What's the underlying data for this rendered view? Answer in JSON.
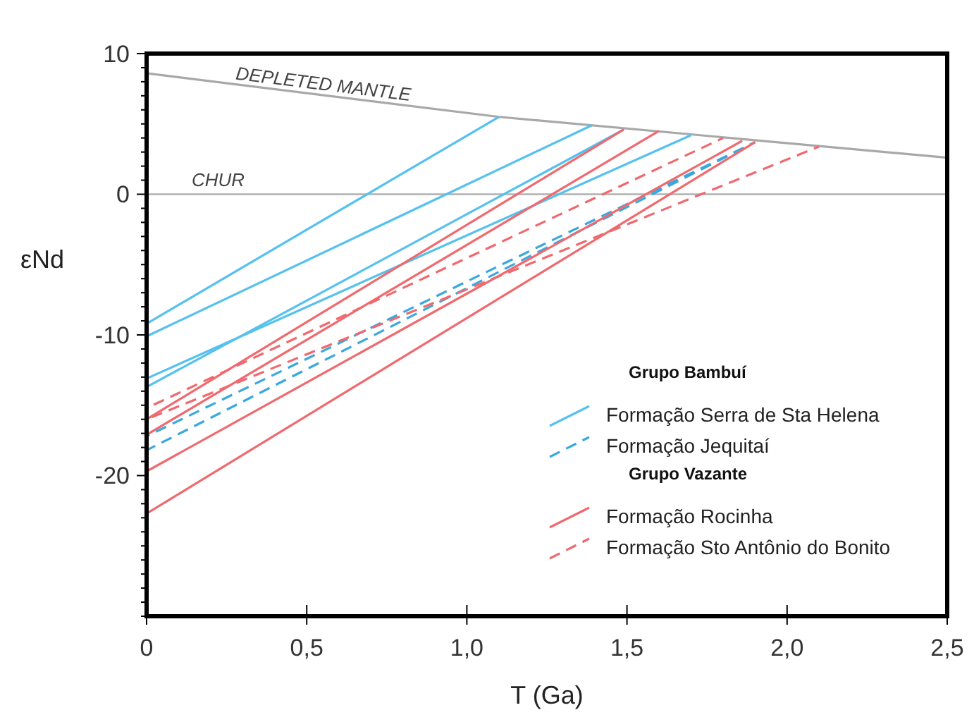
{
  "chart_data": {
    "type": "line",
    "xlabel": "T (Ga)",
    "ylabel": "εNd",
    "xlim": [
      0,
      2.5
    ],
    "ylim": [
      -30,
      10
    ],
    "xticks": [
      0,
      {
        "value": 0.5,
        "label": "0,5"
      },
      {
        "value": 1,
        "label": "1,0"
      },
      {
        "value": 1.5,
        "label": "1,5"
      },
      {
        "value": 2,
        "label": "2,0"
      },
      {
        "value": 2.5,
        "label": "2,5"
      }
    ],
    "yticks": [
      {
        "value": -30,
        "label": null
      },
      {
        "value": -29,
        "label": null
      },
      {
        "value": -28,
        "label": null
      },
      {
        "value": -27,
        "label": null
      },
      {
        "value": -26,
        "label": null
      },
      {
        "value": -25,
        "label": null
      },
      {
        "value": -24,
        "label": null
      },
      {
        "value": -23,
        "label": null
      },
      {
        "value": -22,
        "label": null
      },
      {
        "value": -21,
        "label": null
      },
      -20,
      {
        "value": -19,
        "label": null
      },
      {
        "value": -18,
        "label": null
      },
      {
        "value": -17,
        "label": null
      },
      {
        "value": -16,
        "label": null
      },
      {
        "value": -15,
        "label": null
      },
      {
        "value": -14,
        "label": null
      },
      {
        "value": -13,
        "label": null
      },
      {
        "value": -12,
        "label": null
      },
      {
        "value": -11,
        "label": null
      },
      -10,
      {
        "value": -9,
        "label": null
      },
      {
        "value": -8,
        "label": null
      },
      {
        "value": -7,
        "label": null
      },
      {
        "value": -6,
        "label": null
      },
      {
        "value": -5,
        "label": null
      },
      {
        "value": -4,
        "label": null
      },
      {
        "value": -3,
        "label": null
      },
      {
        "value": -2,
        "label": null
      },
      {
        "value": -1,
        "label": null
      },
      0,
      {
        "value": 1,
        "label": null
      },
      {
        "value": 2,
        "label": null
      },
      {
        "value": 3,
        "label": null
      },
      {
        "value": 4,
        "label": null
      },
      {
        "value": 5,
        "label": null
      },
      {
        "value": 6,
        "label": null
      },
      {
        "value": 7,
        "label": null
      },
      {
        "value": 8,
        "label": null
      },
      {
        "value": 9,
        "label": null
      },
      10
    ],
    "legend": "bottom right",
    "ref_lines": [
      {
        "axis": "y",
        "value": 0,
        "label": "CHUR",
        "color": "#b0b0b0"
      }
    ],
    "annotations": [
      "Grupo Bambuí",
      "Grupo Vazante",
      {
        "text": "DEPLETED MANTLE",
        "x": 0.55,
        "y": 7.4
      }
    ],
    "series": [
      {
        "color": "#a8a8a8",
        "x": [
          0,
          1.1,
          2.5
        ],
        "values": [
          8.6,
          5.5,
          2.6
        ]
      },
      {
        "name": "Formação Serra de Sta Helena",
        "color": "#55c1ee",
        "x": [
          0,
          1.1
        ],
        "values": [
          -9.2,
          5.5
        ]
      },
      {
        "color": "#55c1ee",
        "x": [
          0,
          1.39
        ],
        "values": [
          -10.1,
          4.9
        ]
      },
      {
        "color": "#55c1ee",
        "x": [
          0,
          1.7
        ],
        "values": [
          -13.1,
          4.2
        ]
      },
      {
        "color": "#55c1ee",
        "x": [
          0,
          1.49
        ],
        "values": [
          -13.7,
          4.6
        ]
      },
      {
        "name": "Formação Jequitaí",
        "color": "#3aa8de",
        "line_style": "dashed",
        "x": [
          0,
          1.9
        ],
        "values": [
          -17.2,
          3.7
        ]
      },
      {
        "color": "#3aa8de",
        "line_style": "dashed",
        "x": [
          0,
          1.9
        ],
        "values": [
          -18.2,
          3.7
        ]
      },
      {
        "name": "Formação Rocinha",
        "color": "#f0696e",
        "x": [
          0,
          1.49
        ],
        "values": [
          -16,
          4.6
        ]
      },
      {
        "color": "#f0696e",
        "x": [
          0,
          1.6
        ],
        "values": [
          -17.1,
          4.5
        ]
      },
      {
        "color": "#f0696e",
        "x": [
          0,
          1.86
        ],
        "values": [
          -19.7,
          3.8
        ]
      },
      {
        "color": "#f0696e",
        "x": [
          0,
          1.9
        ],
        "values": [
          -22.7,
          3.7
        ]
      },
      {
        "name": "Formação Sto Antônio do Bonito",
        "color": "#f0696e",
        "line_style": "dashed",
        "x": [
          0,
          1.8
        ],
        "values": [
          -15.2,
          4
        ]
      },
      {
        "color": "#f0696e",
        "line_style": "dashed",
        "x": [
          0,
          2.1
        ],
        "values": [
          -16,
          3.4
        ]
      }
    ]
  }
}
